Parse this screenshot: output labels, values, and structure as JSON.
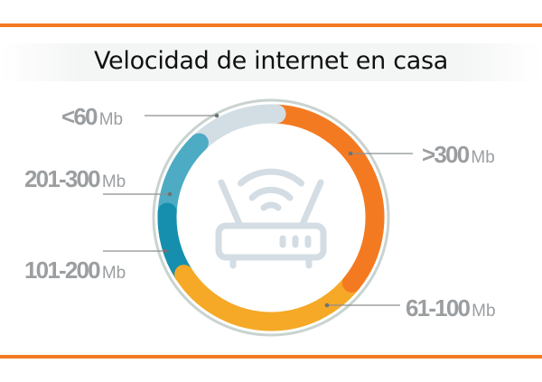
{
  "title": "Velocidad de internet en casa",
  "icon": "wifi-router-icon",
  "chart_data": {
    "type": "pie",
    "variant": "donut",
    "title": "Velocidad de internet en casa",
    "unit": "Mb",
    "start": "top",
    "direction": "clockwise",
    "categories": [
      ">300",
      "61-100",
      "101-200",
      "201-300",
      "<60"
    ],
    "values": [
      35,
      30,
      10,
      12,
      13
    ],
    "colors": [
      "#f47a22",
      "#f5a927",
      "#168fae",
      "#4dabc4",
      "#d2dee4"
    ],
    "legend": "leader-line labels"
  },
  "colors": {
    "rule": "#f47a22",
    "ring": "#c9d3d0",
    "label": "#9b9ea0",
    "icon": "#d3dde3"
  }
}
